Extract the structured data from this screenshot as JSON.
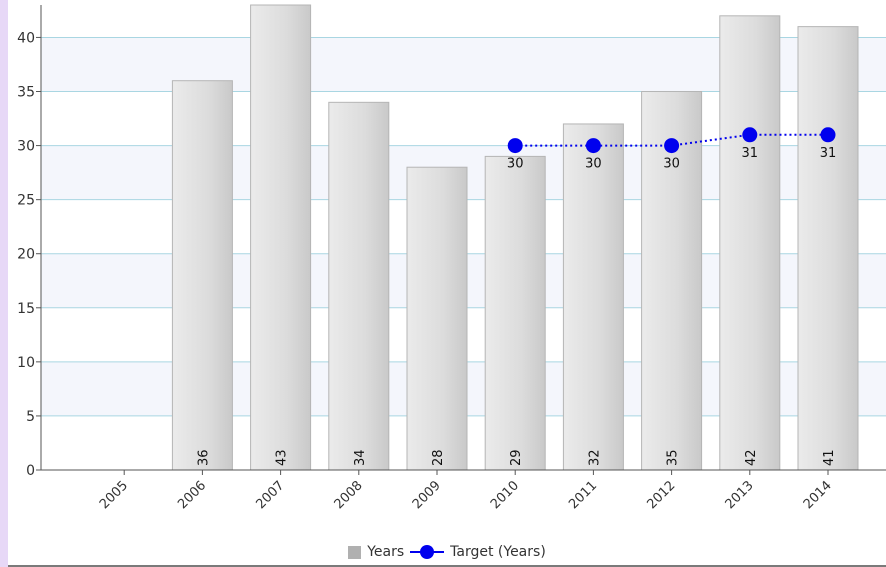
{
  "chart_data": {
    "type": "bar",
    "categories": [
      "2005",
      "2006",
      "2007",
      "2008",
      "2009",
      "2010",
      "2011",
      "2012",
      "2013",
      "2014"
    ],
    "series": [
      {
        "name": "Years",
        "type": "bar",
        "values": [
          null,
          36,
          43,
          34,
          28,
          29,
          32,
          35,
          42,
          41
        ],
        "color": "#d9d9d9"
      },
      {
        "name": "Target (Years)",
        "type": "line",
        "values": [
          null,
          null,
          null,
          null,
          null,
          30,
          30,
          30,
          31,
          31
        ],
        "color": "#0000ee"
      }
    ],
    "ylim": [
      0,
      43
    ],
    "yticks": [
      0,
      5,
      10,
      15,
      20,
      25,
      30,
      35,
      40
    ],
    "grid": true,
    "legend_position": "bottom"
  },
  "legend": {
    "items": [
      {
        "label": "Years",
        "color": "#b0b0b0"
      },
      {
        "label": "Target (Years)",
        "color": "#0000ee"
      }
    ]
  }
}
